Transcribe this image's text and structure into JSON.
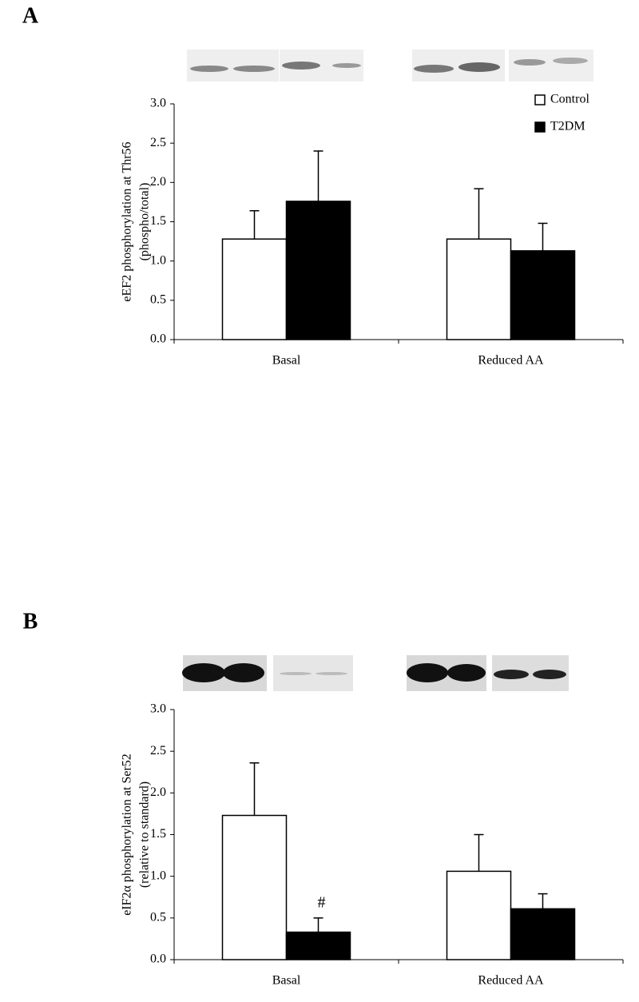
{
  "chart_data": [
    {
      "type": "bar",
      "panel_label": "A",
      "ylabel": [
        "eEF2 phosphorylation at Thr56",
        "(phospho/total)"
      ],
      "categories": [
        "Basal",
        "Reduced AA"
      ],
      "series": [
        {
          "name": "Control",
          "color": "#ffffff",
          "values": [
            1.28,
            1.28
          ],
          "errors": [
            0.36,
            0.64
          ]
        },
        {
          "name": "T2DM",
          "color": "#000000",
          "values": [
            1.76,
            1.13
          ],
          "errors": [
            0.64,
            0.35
          ]
        }
      ],
      "ylim": [
        0,
        3
      ],
      "yticks": [
        {
          "value": 0,
          "label": "0.0"
        },
        0.5,
        {
          "value": 1,
          "label": "1.0"
        },
        1.5,
        {
          "value": 2,
          "label": "2.0"
        },
        2.5,
        {
          "value": 3,
          "label": "3.0"
        }
      ],
      "legend": "upper right"
    },
    {
      "type": "bar",
      "panel_label": "B",
      "ylabel": [
        "eIF2α phosphorylation at Ser52",
        "(relative to standard)"
      ],
      "categories": [
        "Basal",
        "Reduced AA"
      ],
      "series": [
        {
          "color": "#ffffff",
          "values": [
            1.73,
            1.06
          ],
          "errors": [
            0.63,
            0.44
          ]
        },
        {
          "color": "#000000",
          "values": [
            0.33,
            0.61
          ],
          "errors": [
            0.17,
            0.18
          ],
          "markers": [
            "#",
            null
          ]
        }
      ],
      "ylim": [
        0,
        3
      ],
      "yticks": [
        {
          "value": 0,
          "label": "0.0"
        },
        0.5,
        {
          "value": 1,
          "label": "1.0"
        },
        1.5,
        {
          "value": 2,
          "label": "2.0"
        },
        2.5,
        {
          "value": 3,
          "label": "3.0"
        }
      ],
      "legend": null
    }
  ]
}
